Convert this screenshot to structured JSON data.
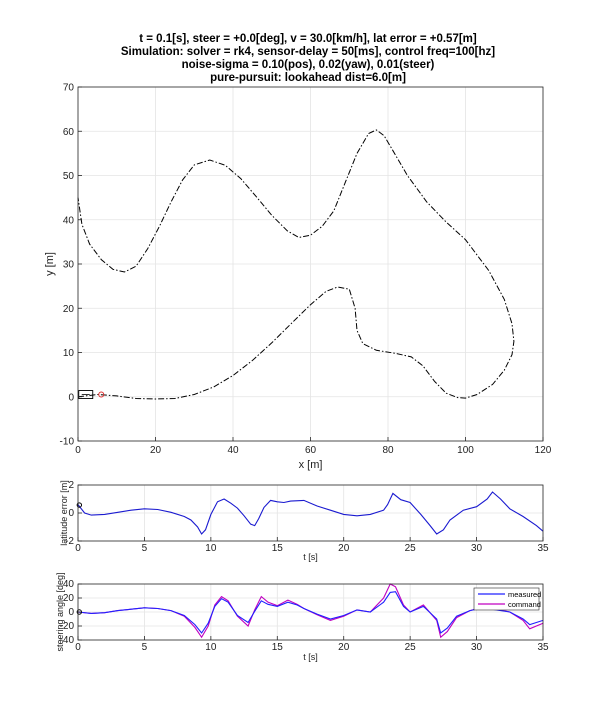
{
  "title_lines": [
    "t = 0.1[s], steer = +0.0[deg], v = 30.0[km/h], lat error = +0.57[m]",
    "Simulation: solver = rk4, sensor-delay = 50[ms], control freq=100[hz]",
    "noise-sigma = 0.10(pos), 0.02(yaw), 0.01(steer)",
    "pure-pursuit: lookahead dist=6.0[m]"
  ],
  "colors": {
    "path": "#000000",
    "measured": "#2020ff",
    "command": "#c000c0",
    "latitude_error": "#1a1ad0",
    "target_marker": "#e03030",
    "grid": "#e4e4e4"
  },
  "chart_data": [
    {
      "type": "line",
      "name": "trajectory",
      "xlabel": "x [m]",
      "ylabel": "y [m]",
      "xlim": [
        0,
        120
      ],
      "ylim": [
        -10,
        70
      ],
      "xticks": [
        "0",
        "20",
        "40",
        "60",
        "80",
        "100",
        "120"
      ],
      "yticks": [
        "-10",
        "0",
        "10",
        "20",
        "30",
        "40",
        "50",
        "60",
        "70"
      ],
      "grid": true,
      "path_style": "dash-dot",
      "path_points": [
        [
          0,
          0
        ],
        [
          5,
          0.5
        ],
        [
          10,
          0.2
        ],
        [
          15,
          -0.4
        ],
        [
          20,
          -0.5
        ],
        [
          25,
          -0.4
        ],
        [
          30,
          0.5
        ],
        [
          35,
          2.2
        ],
        [
          40,
          4.8
        ],
        [
          45,
          8.2
        ],
        [
          50,
          12.2
        ],
        [
          55,
          16.5
        ],
        [
          60,
          20.8
        ],
        [
          64,
          23.8
        ],
        [
          67,
          24.8
        ],
        [
          70,
          24.3
        ],
        [
          71.5,
          20
        ],
        [
          72,
          15
        ],
        [
          73.5,
          12
        ],
        [
          77,
          10.5
        ],
        [
          82,
          9.8
        ],
        [
          86,
          9
        ],
        [
          89,
          7
        ],
        [
          92,
          3.5
        ],
        [
          95,
          0.8
        ],
        [
          98,
          -0.2
        ],
        [
          100,
          -0.3
        ],
        [
          103,
          0.5
        ],
        [
          107,
          2.8
        ],
        [
          110,
          6
        ],
        [
          112,
          9.5
        ],
        [
          112.5,
          12.5
        ],
        [
          112,
          16.5
        ],
        [
          110,
          22
        ],
        [
          106,
          28.5
        ],
        [
          100,
          35.5
        ],
        [
          95,
          39.5
        ],
        [
          90,
          44
        ],
        [
          85,
          50
        ],
        [
          81,
          56
        ],
        [
          79,
          59
        ],
        [
          77,
          60.3
        ],
        [
          75,
          59.5
        ],
        [
          72,
          55
        ],
        [
          69,
          48.5
        ],
        [
          66,
          42
        ],
        [
          63,
          38.5
        ],
        [
          60,
          36.5
        ],
        [
          57,
          36
        ],
        [
          54,
          37.5
        ],
        [
          50,
          41
        ],
        [
          46,
          45.2
        ],
        [
          42,
          49.3
        ],
        [
          38,
          52.3
        ],
        [
          34,
          53.5
        ],
        [
          30,
          52.4
        ],
        [
          27,
          49
        ],
        [
          24,
          44
        ],
        [
          21,
          38.5
        ],
        [
          18,
          33.5
        ],
        [
          15,
          29.5
        ],
        [
          12,
          28.2
        ],
        [
          9,
          28.8
        ],
        [
          6,
          31
        ],
        [
          3,
          34.5
        ],
        [
          1,
          39
        ],
        [
          0,
          45
        ]
      ],
      "vehicle": {
        "x": 2,
        "y": 0.5
      },
      "target_point": {
        "x": 6,
        "y": 0.5
      }
    },
    {
      "type": "line",
      "name": "latitude-error",
      "xlabel": "t [s]",
      "ylabel": "latitude error [m]",
      "xlim": [
        0,
        35
      ],
      "ylim": [
        -2,
        2
      ],
      "xticks": [
        "0",
        "5",
        "10",
        "15",
        "20",
        "25",
        "30",
        "35"
      ],
      "yticks": [
        "-2",
        "0",
        "2"
      ],
      "grid": true,
      "series": [
        {
          "x": [
            0,
            0.5,
            1,
            2,
            3,
            4,
            5,
            6,
            7,
            8,
            8.5,
            9,
            9.3,
            9.6,
            10,
            10.5,
            11,
            11.5,
            12,
            12.5,
            13,
            13.3,
            13.6,
            14,
            14.5,
            15,
            15.5,
            16,
            17,
            18,
            19,
            20,
            21,
            22,
            23,
            23.3,
            23.7,
            24.3,
            25,
            25.8,
            26.5,
            27,
            27.5,
            28,
            29,
            30,
            30.8,
            31.2,
            31.8,
            32.5,
            33.5,
            34.5,
            35
          ],
          "y": [
            0.6,
            0,
            -0.15,
            -0.1,
            0.05,
            0.2,
            0.3,
            0.25,
            0.05,
            -0.25,
            -0.5,
            -1.0,
            -1.5,
            -1.2,
            -0.1,
            0.8,
            1.0,
            0.7,
            0.35,
            -0.2,
            -0.8,
            -0.9,
            -0.4,
            0.4,
            0.9,
            0.8,
            0.75,
            0.85,
            0.9,
            0.5,
            0.2,
            -0.1,
            -0.2,
            -0.1,
            0.2,
            0.6,
            1.4,
            0.95,
            0.75,
            -0.1,
            -0.9,
            -1.5,
            -1.2,
            -0.5,
            0.2,
            0.45,
            1.0,
            1.5,
            1.0,
            0.3,
            -0.25,
            -0.9,
            -1.3
          ]
        }
      ],
      "current_marker": {
        "t": 0.1,
        "value": 0.57
      }
    },
    {
      "type": "line",
      "name": "steering-angle",
      "xlabel": "t [s]",
      "ylabel": "steering angle [deg]",
      "xlim": [
        0,
        35
      ],
      "ylim": [
        -40,
        40
      ],
      "xticks": [
        "0",
        "5",
        "10",
        "15",
        "20",
        "25",
        "30",
        "35"
      ],
      "yticks": [
        "-40",
        "-20",
        "0",
        "20",
        "40"
      ],
      "grid": true,
      "legend": "top-right",
      "series": [
        {
          "name": "measured",
          "x": [
            0,
            1,
            2,
            3,
            4,
            5,
            6,
            7,
            8,
            8.8,
            9.3,
            9.8,
            10.3,
            10.8,
            11.3,
            12,
            12.8,
            13.3,
            13.8,
            14.3,
            15,
            15.8,
            16.5,
            17,
            18,
            19,
            20,
            21,
            22,
            23,
            23.5,
            23.9,
            24.5,
            25,
            26,
            27,
            27.3,
            27.8,
            28.5,
            29.5,
            30.5,
            31.5,
            32.5,
            33.5,
            34,
            35
          ],
          "y": [
            0,
            -2,
            -1,
            2,
            4,
            6,
            5,
            2,
            -5,
            -18,
            -30,
            -16,
            8,
            19,
            14,
            -5,
            -15,
            1,
            16,
            11,
            8,
            14,
            10,
            5,
            -3,
            -10,
            -5,
            3,
            0,
            14,
            28,
            29,
            8,
            0,
            8,
            -10,
            -30,
            -23,
            -6,
            2,
            6,
            3,
            0,
            -10,
            -18,
            -12
          ]
        },
        {
          "name": "command",
          "x": [
            0,
            1,
            2,
            3,
            4,
            5,
            6,
            7,
            8,
            8.8,
            9.3,
            9.8,
            10.3,
            10.8,
            11.3,
            12,
            12.8,
            13.3,
            13.8,
            14.3,
            15,
            15.8,
            16.5,
            17,
            18,
            19,
            20,
            21,
            22,
            23,
            23.5,
            23.9,
            24.5,
            25,
            26,
            27,
            27.3,
            27.8,
            28.5,
            29.5,
            30.5,
            31.5,
            32.5,
            33.5,
            34,
            35
          ],
          "y": [
            0,
            -2,
            -1,
            2,
            4,
            6,
            5,
            2,
            -6,
            -22,
            -36,
            -20,
            10,
            22,
            16,
            -6,
            -20,
            3,
            22,
            14,
            9,
            17,
            11,
            5,
            -4,
            -12,
            -6,
            3,
            0,
            20,
            40,
            36,
            10,
            0,
            10,
            -12,
            -36,
            -28,
            -8,
            2,
            7,
            4,
            0,
            -12,
            -24,
            -16
          ]
        }
      ]
    }
  ]
}
